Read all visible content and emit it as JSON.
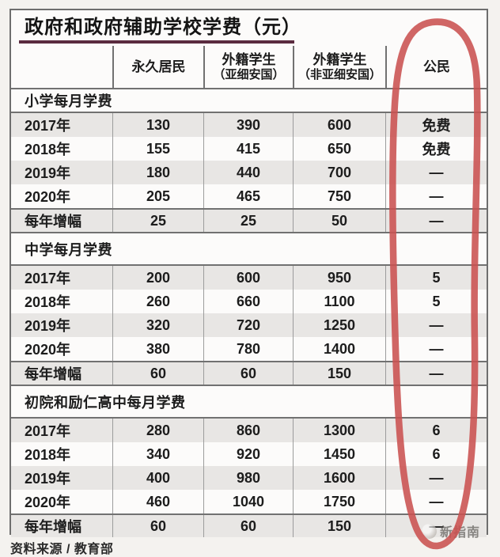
{
  "header": {
    "title": "政府和政府辅助学校学费（元）"
  },
  "table": {
    "columns": [
      {
        "line1": "永久居民",
        "line2": ""
      },
      {
        "line1": "外籍学生",
        "line2": "（亚细安国）"
      },
      {
        "line1": "外籍学生",
        "line2": "（非亚细安国）"
      },
      {
        "line1": "公民",
        "line2": ""
      }
    ],
    "sections": [
      {
        "title": "小学每月学费",
        "rows": [
          {
            "label": "2017年",
            "values": [
              "130",
              "390",
              "600",
              "免费"
            ]
          },
          {
            "label": "2018年",
            "values": [
              "155",
              "415",
              "650",
              "免费"
            ]
          },
          {
            "label": "2019年",
            "values": [
              "180",
              "440",
              "700",
              "—"
            ]
          },
          {
            "label": "2020年",
            "values": [
              "205",
              "465",
              "750",
              "—"
            ]
          },
          {
            "label": "每年增幅",
            "values": [
              "25",
              "25",
              "50",
              "—"
            ]
          }
        ]
      },
      {
        "title": "中学每月学费",
        "rows": [
          {
            "label": "2017年",
            "values": [
              "200",
              "600",
              "950",
              "5"
            ]
          },
          {
            "label": "2018年",
            "values": [
              "260",
              "660",
              "1100",
              "5"
            ]
          },
          {
            "label": "2019年",
            "values": [
              "320",
              "720",
              "1250",
              "—"
            ]
          },
          {
            "label": "2020年",
            "values": [
              "380",
              "780",
              "1400",
              "—"
            ]
          },
          {
            "label": "每年增幅",
            "values": [
              "60",
              "60",
              "150",
              "—"
            ]
          }
        ]
      },
      {
        "title": "初院和励仁高中每月学费",
        "rows": [
          {
            "label": "2017年",
            "values": [
              "280",
              "860",
              "1300",
              "6"
            ]
          },
          {
            "label": "2018年",
            "values": [
              "340",
              "920",
              "1450",
              "6"
            ]
          },
          {
            "label": "2019年",
            "values": [
              "400",
              "980",
              "1600",
              "—"
            ]
          },
          {
            "label": "2020年",
            "values": [
              "460",
              "1040",
              "1750",
              "—"
            ]
          },
          {
            "label": "每年增幅",
            "values": [
              "60",
              "60",
              "150",
              "—"
            ]
          }
        ]
      }
    ]
  },
  "footer": {
    "source": "资料来源 / 教育部",
    "watermark": "新指南"
  },
  "annotation": {
    "shape": "hand-drawn-oval",
    "target_column": "公民",
    "color": "#ca5150"
  },
  "colors": {
    "title_underline": "#5a2b3f",
    "row_shade": "#e8e6e4",
    "marker_red": "#ca5150"
  },
  "chart_data": {
    "type": "table",
    "title": "政府和政府辅助学校学费（元）",
    "columns": [
      "",
      "永久居民",
      "外籍学生（亚细安国）",
      "外籍学生（非亚细安国）",
      "公民"
    ],
    "sections": [
      {
        "title": "小学每月学费",
        "rows": [
          [
            "2017年",
            130,
            390,
            600,
            "免费"
          ],
          [
            "2018年",
            155,
            415,
            650,
            "免费"
          ],
          [
            "2019年",
            180,
            440,
            700,
            "—"
          ],
          [
            "2020年",
            205,
            465,
            750,
            "—"
          ],
          [
            "每年增幅",
            25,
            25,
            50,
            "—"
          ]
        ]
      },
      {
        "title": "中学每月学费",
        "rows": [
          [
            "2017年",
            200,
            600,
            950,
            5
          ],
          [
            "2018年",
            260,
            660,
            1100,
            5
          ],
          [
            "2019年",
            320,
            720,
            1250,
            "—"
          ],
          [
            "2020年",
            380,
            780,
            1400,
            "—"
          ],
          [
            "每年增幅",
            60,
            60,
            150,
            "—"
          ]
        ]
      },
      {
        "title": "初院和励仁高中每月学费",
        "rows": [
          [
            "2017年",
            280,
            860,
            1300,
            6
          ],
          [
            "2018年",
            340,
            920,
            1450,
            6
          ],
          [
            "2019年",
            400,
            980,
            1600,
            "—"
          ],
          [
            "2020年",
            460,
            1040,
            1750,
            "—"
          ],
          [
            "每年增幅",
            60,
            60,
            150,
            "—"
          ]
        ]
      }
    ],
    "source": "资料来源 / 教育部",
    "annotations": [
      "公民 column circled with hand-drawn red oval"
    ]
  }
}
